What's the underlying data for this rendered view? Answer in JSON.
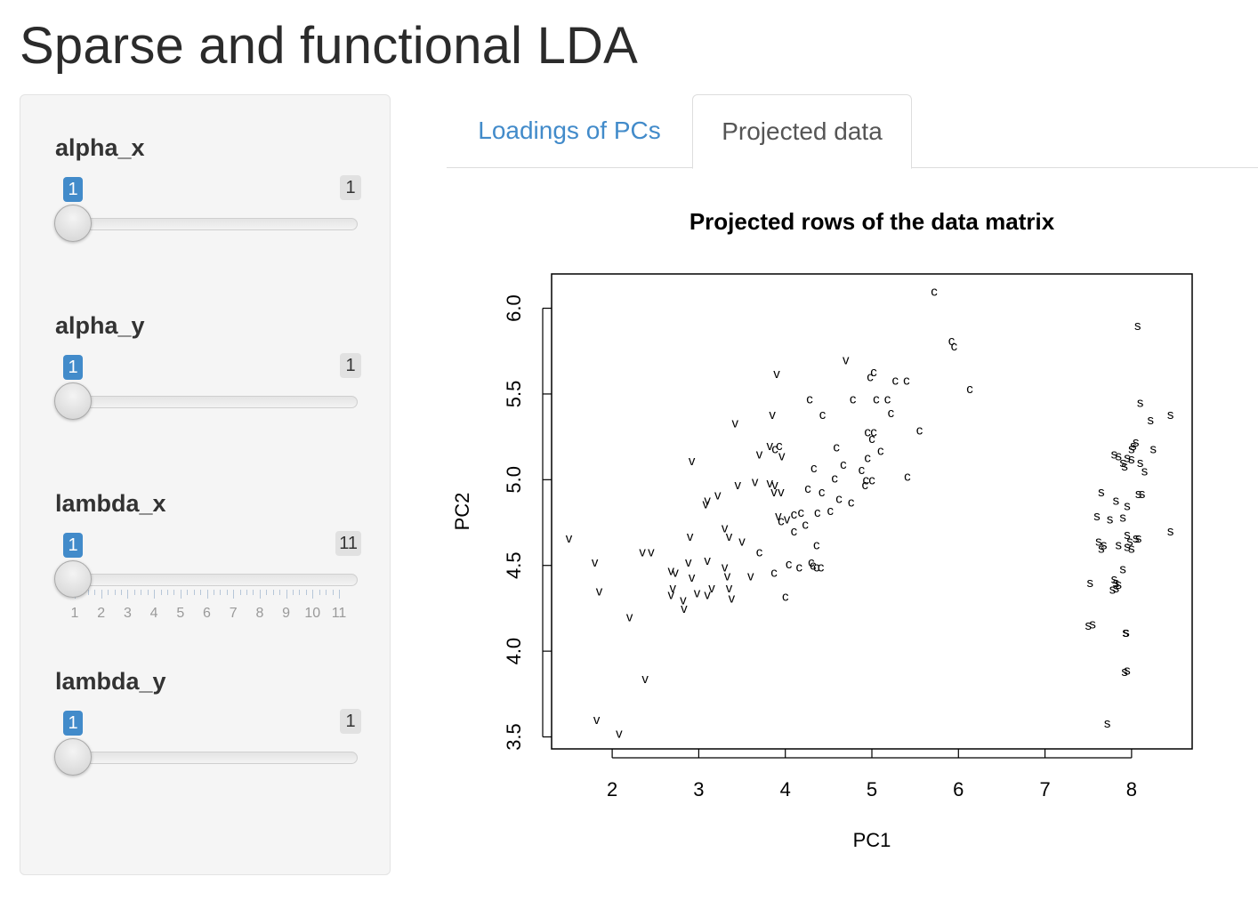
{
  "page": {
    "title": "Sparse and functional LDA"
  },
  "sidebar": {
    "sliders": [
      {
        "label": "alpha_x",
        "min_display": "1",
        "max_display": "1",
        "value": 1,
        "min": 1,
        "max": 1
      },
      {
        "label": "alpha_y",
        "min_display": "1",
        "max_display": "1",
        "value": 1,
        "min": 1,
        "max": 1
      },
      {
        "label": "lambda_x",
        "min_display": "1",
        "max_display": "11",
        "value": 1,
        "min": 1,
        "max": 11,
        "grid_labels": [
          "1",
          "2",
          "3",
          "4",
          "5",
          "6",
          "7",
          "8",
          "9",
          "10",
          "11"
        ]
      },
      {
        "label": "lambda_y",
        "min_display": "1",
        "max_display": "1",
        "value": 1,
        "min": 1,
        "max": 1
      }
    ]
  },
  "tabs": [
    {
      "label": "Loadings of PCs",
      "active": false
    },
    {
      "label": "Projected data",
      "active": true
    }
  ],
  "colors": {
    "accent": "#428bca",
    "sidebar_bg": "#f5f5f5",
    "badge_grey": "#e1e1e1"
  },
  "chart_data": {
    "type": "scatter",
    "title": "Projected rows of the data matrix",
    "xlabel": "PC1",
    "ylabel": "PC2",
    "xlim": [
      1.3,
      8.7
    ],
    "ylim": [
      3.43,
      6.2
    ],
    "xticks": [
      "2",
      "3",
      "4",
      "5",
      "6",
      "7",
      "8"
    ],
    "yticks": [
      "3.5",
      "4.0",
      "4.5",
      "5.0",
      "5.5",
      "6.0"
    ],
    "grid": false,
    "legend": "none",
    "point_labels": [
      "s",
      "c",
      "v"
    ],
    "series": [
      {
        "marker": "s",
        "points": [
          [
            8.07,
            5.9
          ],
          [
            8.1,
            5.45
          ],
          [
            8.45,
            5.38
          ],
          [
            8.22,
            5.35
          ],
          [
            8.05,
            5.22
          ],
          [
            8.02,
            5.2
          ],
          [
            8.0,
            5.18
          ],
          [
            8.25,
            5.18
          ],
          [
            7.8,
            5.15
          ],
          [
            7.85,
            5.14
          ],
          [
            7.95,
            5.13
          ],
          [
            8.0,
            5.12
          ],
          [
            7.9,
            5.1
          ],
          [
            8.1,
            5.1
          ],
          [
            8.15,
            5.05
          ],
          [
            7.92,
            5.08
          ],
          [
            7.65,
            4.93
          ],
          [
            8.08,
            4.92
          ],
          [
            8.12,
            4.92
          ],
          [
            7.82,
            4.88
          ],
          [
            7.95,
            4.85
          ],
          [
            7.6,
            4.79
          ],
          [
            7.75,
            4.77
          ],
          [
            7.9,
            4.78
          ],
          [
            8.45,
            4.7
          ],
          [
            7.95,
            4.68
          ],
          [
            8.05,
            4.66
          ],
          [
            8.08,
            4.66
          ],
          [
            7.62,
            4.64
          ],
          [
            7.68,
            4.62
          ],
          [
            7.65,
            4.6
          ],
          [
            7.85,
            4.62
          ],
          [
            7.95,
            4.61
          ],
          [
            8.0,
            4.6
          ],
          [
            7.98,
            4.64
          ],
          [
            7.9,
            4.48
          ],
          [
            7.52,
            4.4
          ],
          [
            7.8,
            4.42
          ],
          [
            7.82,
            4.4
          ],
          [
            7.85,
            4.39
          ],
          [
            7.78,
            4.36
          ],
          [
            7.82,
            4.37
          ],
          [
            7.5,
            4.15
          ],
          [
            7.55,
            4.16
          ],
          [
            7.93,
            4.11
          ],
          [
            7.94,
            4.11
          ],
          [
            7.92,
            3.88
          ],
          [
            7.95,
            3.89
          ],
          [
            7.72,
            3.58
          ]
        ]
      },
      {
        "marker": "c",
        "points": [
          [
            5.72,
            6.1
          ],
          [
            5.92,
            5.81
          ],
          [
            5.95,
            5.78
          ],
          [
            5.02,
            5.63
          ],
          [
            4.98,
            5.6
          ],
          [
            5.27,
            5.58
          ],
          [
            5.4,
            5.58
          ],
          [
            6.13,
            5.53
          ],
          [
            4.28,
            5.47
          ],
          [
            4.78,
            5.47
          ],
          [
            5.05,
            5.47
          ],
          [
            5.18,
            5.47
          ],
          [
            4.43,
            5.38
          ],
          [
            5.22,
            5.39
          ],
          [
            5.55,
            5.29
          ],
          [
            3.93,
            5.2
          ],
          [
            4.95,
            5.28
          ],
          [
            5.02,
            5.28
          ],
          [
            5.0,
            5.24
          ],
          [
            4.59,
            5.19
          ],
          [
            5.1,
            5.17
          ],
          [
            3.88,
            5.18
          ],
          [
            4.95,
            5.13
          ],
          [
            4.33,
            5.07
          ],
          [
            4.67,
            5.09
          ],
          [
            4.88,
            5.06
          ],
          [
            4.57,
            5.01
          ],
          [
            4.93,
            5.0
          ],
          [
            5.0,
            5.0
          ],
          [
            4.92,
            4.97
          ],
          [
            5.41,
            5.02
          ],
          [
            4.26,
            4.95
          ],
          [
            4.42,
            4.93
          ],
          [
            4.62,
            4.89
          ],
          [
            4.76,
            4.87
          ],
          [
            4.52,
            4.82
          ],
          [
            4.1,
            4.8
          ],
          [
            4.18,
            4.81
          ],
          [
            4.37,
            4.81
          ],
          [
            3.95,
            4.76
          ],
          [
            4.23,
            4.74
          ],
          [
            4.1,
            4.7
          ],
          [
            4.36,
            4.62
          ],
          [
            3.7,
            4.58
          ],
          [
            4.3,
            4.52
          ],
          [
            4.32,
            4.5
          ],
          [
            4.36,
            4.49
          ],
          [
            4.41,
            4.49
          ],
          [
            4.04,
            4.51
          ],
          [
            4.16,
            4.49
          ],
          [
            3.87,
            4.46
          ],
          [
            4.0,
            4.32
          ]
        ]
      },
      {
        "marker": "v",
        "points": [
          [
            3.9,
            5.62
          ],
          [
            4.7,
            5.7
          ],
          [
            3.42,
            5.33
          ],
          [
            3.85,
            5.38
          ],
          [
            3.7,
            5.15
          ],
          [
            3.82,
            5.2
          ],
          [
            3.96,
            5.14
          ],
          [
            2.92,
            5.11
          ],
          [
            3.65,
            4.99
          ],
          [
            3.82,
            4.98
          ],
          [
            3.88,
            4.97
          ],
          [
            3.45,
            4.97
          ],
          [
            3.87,
            4.93
          ],
          [
            3.95,
            4.93
          ],
          [
            3.22,
            4.91
          ],
          [
            3.1,
            4.88
          ],
          [
            3.08,
            4.86
          ],
          [
            3.92,
            4.79
          ],
          [
            4.02,
            4.77
          ],
          [
            3.3,
            4.72
          ],
          [
            3.35,
            4.67
          ],
          [
            2.9,
            4.67
          ],
          [
            3.5,
            4.64
          ],
          [
            1.5,
            4.66
          ],
          [
            2.35,
            4.58
          ],
          [
            2.45,
            4.58
          ],
          [
            2.88,
            4.52
          ],
          [
            3.1,
            4.53
          ],
          [
            1.8,
            4.52
          ],
          [
            3.3,
            4.49
          ],
          [
            2.68,
            4.47
          ],
          [
            2.73,
            4.46
          ],
          [
            2.92,
            4.43
          ],
          [
            3.33,
            4.44
          ],
          [
            3.6,
            4.44
          ],
          [
            2.7,
            4.37
          ],
          [
            3.15,
            4.37
          ],
          [
            3.35,
            4.37
          ],
          [
            1.85,
            4.35
          ],
          [
            2.68,
            4.33
          ],
          [
            2.98,
            4.34
          ],
          [
            3.1,
            4.33
          ],
          [
            3.38,
            4.31
          ],
          [
            2.82,
            4.3
          ],
          [
            2.83,
            4.25
          ],
          [
            2.2,
            4.2
          ],
          [
            2.38,
            3.84
          ],
          [
            1.82,
            3.6
          ],
          [
            2.08,
            3.52
          ]
        ]
      }
    ]
  }
}
